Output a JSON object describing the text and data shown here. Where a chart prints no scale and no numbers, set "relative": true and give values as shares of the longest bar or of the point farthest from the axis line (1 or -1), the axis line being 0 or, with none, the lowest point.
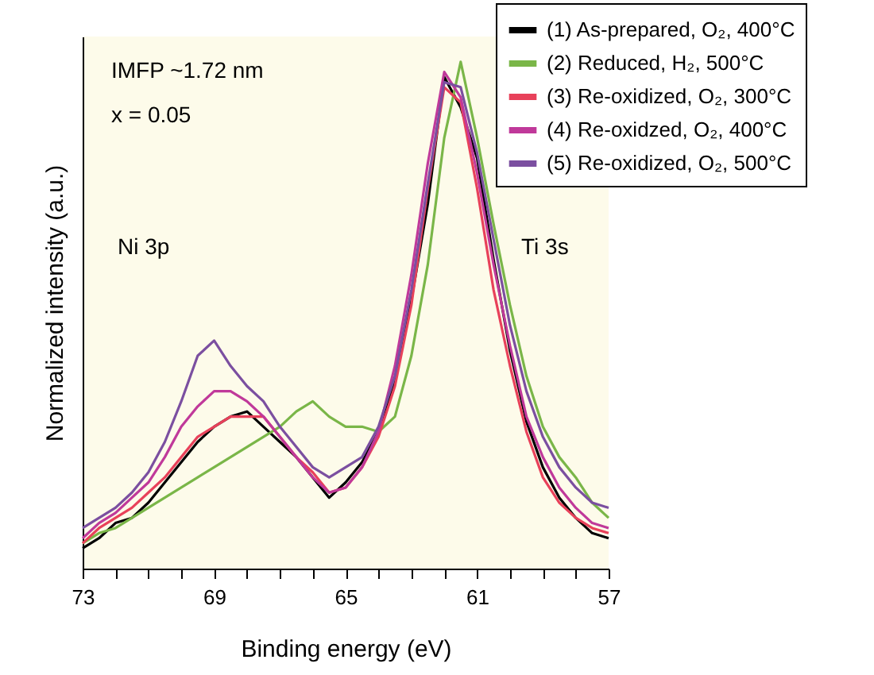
{
  "chart_data": {
    "type": "line",
    "relative": true,
    "xlabel": "Binding energy (eV)",
    "ylabel": "Normalized intensity (a.u.)",
    "xlim": [
      73,
      57
    ],
    "xticks": [
      73,
      {
        "value": 72,
        "label": null
      },
      {
        "value": 71,
        "label": null
      },
      {
        "value": 70,
        "label": null
      },
      69,
      {
        "value": 68,
        "label": null
      },
      {
        "value": 67,
        "label": null
      },
      {
        "value": 66,
        "label": null
      },
      65,
      {
        "value": 64,
        "label": null
      },
      {
        "value": 63,
        "label": null
      },
      {
        "value": 62,
        "label": null
      },
      61,
      {
        "value": 60,
        "label": null
      },
      {
        "value": 59,
        "label": null
      },
      {
        "value": 58,
        "label": null
      },
      57
    ],
    "x": [
      73,
      72.5,
      72,
      71.5,
      71,
      70.5,
      70,
      69.5,
      69,
      68.5,
      68,
      67.5,
      67,
      66.5,
      66,
      65.5,
      65,
      64.5,
      64,
      63.5,
      63,
      62.5,
      62,
      61.5,
      61,
      60.5,
      60,
      59.5,
      59,
      58.5,
      58,
      57.5,
      57
    ],
    "series": [
      {
        "name": "(1) As-prepared, O₂, 400°C",
        "color": "#000000",
        "values": [
          0.04,
          0.06,
          0.09,
          0.1,
          0.13,
          0.17,
          0.21,
          0.25,
          0.28,
          0.3,
          0.31,
          0.28,
          0.25,
          0.22,
          0.18,
          0.14,
          0.17,
          0.21,
          0.27,
          0.37,
          0.53,
          0.72,
          0.97,
          0.91,
          0.81,
          0.61,
          0.43,
          0.29,
          0.2,
          0.14,
          0.1,
          0.07,
          0.06
        ]
      },
      {
        "name": "(2) Reduced, H₂, 500°C",
        "color": "#7ab648",
        "values": [
          0.05,
          0.07,
          0.08,
          0.1,
          0.12,
          0.14,
          0.16,
          0.18,
          0.2,
          0.22,
          0.24,
          0.26,
          0.28,
          0.31,
          0.33,
          0.3,
          0.28,
          0.28,
          0.27,
          0.3,
          0.42,
          0.6,
          0.85,
          1.0,
          0.85,
          0.68,
          0.52,
          0.38,
          0.28,
          0.22,
          0.18,
          0.13,
          0.1
        ]
      },
      {
        "name": "(3) Re-oxidized, O₂, 300°C",
        "color": "#e8415a",
        "values": [
          0.05,
          0.08,
          0.1,
          0.12,
          0.15,
          0.18,
          0.22,
          0.26,
          0.28,
          0.3,
          0.3,
          0.3,
          0.26,
          0.22,
          0.19,
          0.15,
          0.16,
          0.2,
          0.26,
          0.36,
          0.52,
          0.75,
          0.95,
          0.92,
          0.75,
          0.55,
          0.4,
          0.27,
          0.18,
          0.13,
          0.1,
          0.08,
          0.07
        ]
      },
      {
        "name": "(4) Re-oxidzed, O₂, 400°C",
        "color": "#c0399a",
        "values": [
          0.06,
          0.09,
          0.11,
          0.14,
          0.17,
          0.22,
          0.28,
          0.32,
          0.35,
          0.35,
          0.33,
          0.3,
          0.26,
          0.22,
          0.18,
          0.15,
          0.16,
          0.2,
          0.27,
          0.4,
          0.58,
          0.8,
          0.98,
          0.93,
          0.78,
          0.6,
          0.44,
          0.3,
          0.22,
          0.16,
          0.12,
          0.09,
          0.08
        ]
      },
      {
        "name": "(5) Re-oxidized, O₂, 500°C",
        "color": "#7b4fa0",
        "values": [
          0.08,
          0.1,
          0.12,
          0.15,
          0.19,
          0.25,
          0.33,
          0.42,
          0.45,
          0.4,
          0.36,
          0.33,
          0.28,
          0.24,
          0.2,
          0.18,
          0.2,
          0.22,
          0.28,
          0.38,
          0.55,
          0.76,
          0.96,
          0.95,
          0.82,
          0.65,
          0.48,
          0.35,
          0.26,
          0.2,
          0.16,
          0.13,
          0.12
        ]
      }
    ],
    "annotations": [
      "IMFP ~1.72 nm",
      "x = 0.05",
      "Ni 3p",
      "Ti 3s"
    ],
    "legend": "top right",
    "grid": false,
    "line_style": "solid",
    "marker": "none"
  }
}
